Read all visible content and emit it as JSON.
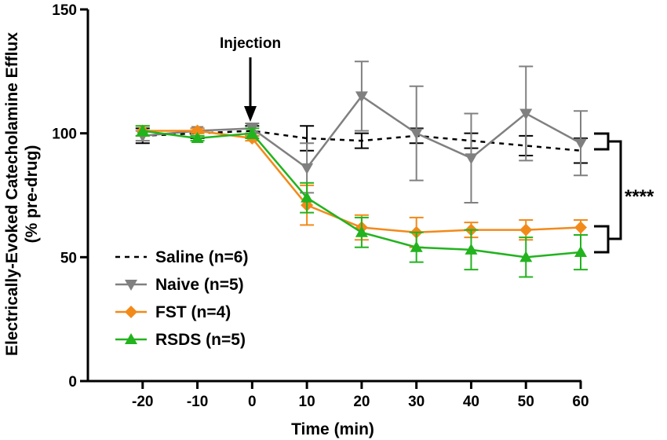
{
  "chart_data": {
    "type": "line",
    "title": "",
    "xlabel": "Time (min)",
    "ylabel_line1": "Electrically-Evoked Catecholamine Efflux",
    "ylabel_line2": "(% pre-drug)",
    "x": [
      -20,
      -10,
      0,
      10,
      20,
      30,
      40,
      50,
      60
    ],
    "xlim": [
      -30,
      60
    ],
    "ylim": [
      0,
      150
    ],
    "xticks": [
      "-20",
      "-10",
      "0",
      "10",
      "20",
      "30",
      "40",
      "50",
      "60"
    ],
    "yticks": [
      "0",
      "50",
      "100",
      "150"
    ],
    "grid": false,
    "legend_position": "bottom-left",
    "annotations": {
      "injection": {
        "text": "Injection",
        "x": 0
      },
      "significance": {
        "text": "****"
      }
    },
    "series": [
      {
        "name": "Saline (n=6)",
        "color": "#000000",
        "style": "dashed",
        "marker": "none",
        "values": [
          99,
          100,
          101,
          98,
          97,
          99,
          97,
          95,
          93
        ],
        "errors": [
          3,
          2,
          2,
          5,
          3,
          3,
          3,
          4,
          5
        ]
      },
      {
        "name": "Naive (n=5)",
        "color": "#808080",
        "style": "solid",
        "marker": "triangle-down",
        "values": [
          99,
          101,
          102,
          86,
          115,
          100,
          90,
          108,
          96
        ],
        "errors": [
          2,
          1,
          2,
          10,
          14,
          19,
          18,
          19,
          13
        ]
      },
      {
        "name": "FST (n=4)",
        "color": "#F28A1A",
        "style": "solid",
        "marker": "diamond",
        "values": [
          101,
          101,
          98,
          71,
          62,
          60,
          61,
          61,
          62
        ],
        "errors": [
          2,
          1,
          1,
          8,
          5,
          6,
          3,
          4,
          3
        ]
      },
      {
        "name": "RSDS (n=5)",
        "color": "#22B31E",
        "style": "solid",
        "marker": "triangle-up",
        "values": [
          101,
          98,
          100,
          74,
          60,
          54,
          53,
          50,
          52
        ],
        "errors": [
          2,
          1,
          2,
          6,
          6,
          6,
          8,
          8,
          7
        ]
      }
    ]
  }
}
